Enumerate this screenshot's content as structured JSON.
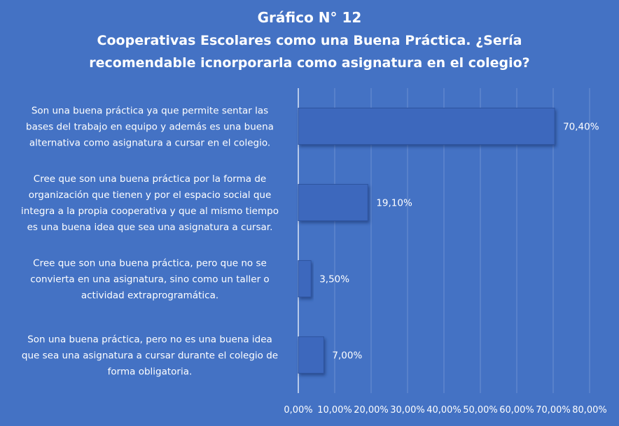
{
  "chart_data": {
    "type": "bar",
    "orientation": "horizontal",
    "title": [
      "Gráfico N° 12",
      "Cooperativas Escolares como una Buena Práctica. ¿Sería",
      "recomendable icnorporarla como asignatura en el colegio?"
    ],
    "categories": [
      [
        "Son una buena práctica ya que permite sentar las",
        "bases del trabajo en equipo y además es una buena",
        "alternativa como asignatura a cursar en el colegio."
      ],
      [
        "Cree que son una buena práctica por la forma de",
        "organización que tienen y por el espacio social que",
        "integra a la propia cooperativa y que al mismo tiempo",
        "es una buena idea que sea una asignatura a cursar."
      ],
      [
        "Cree que son una buena práctica, pero que no se",
        "convierta en una asignatura, sino como un taller o",
        "actividad extraprogramática."
      ],
      [
        "Son una buena práctica, pero no es una buena idea",
        "que sea una asignatura a cursar durante el colegio de",
        "forma obligatoria."
      ]
    ],
    "values": [
      70.4,
      19.1,
      3.5,
      7.0
    ],
    "value_labels": [
      "70,40%",
      "19,10%",
      "3,50%",
      "7,00%"
    ],
    "xlim": [
      0,
      80
    ],
    "xticks": [
      0,
      10,
      20,
      30,
      40,
      50,
      60,
      70,
      80
    ],
    "xtick_labels": [
      "0,00%",
      "10,00%",
      "20,00%",
      "30,00%",
      "40,00%",
      "50,00%",
      "60,00%",
      "70,00%",
      "80,00%"
    ],
    "grid": true,
    "legend": "none",
    "colors": {
      "background": "#4472c4",
      "bar": "#3d68bd",
      "bar_edge": "#2e54a0",
      "gridline": "#6d90d2",
      "axis": "#dfe7f6",
      "text": "#ffffff"
    }
  }
}
